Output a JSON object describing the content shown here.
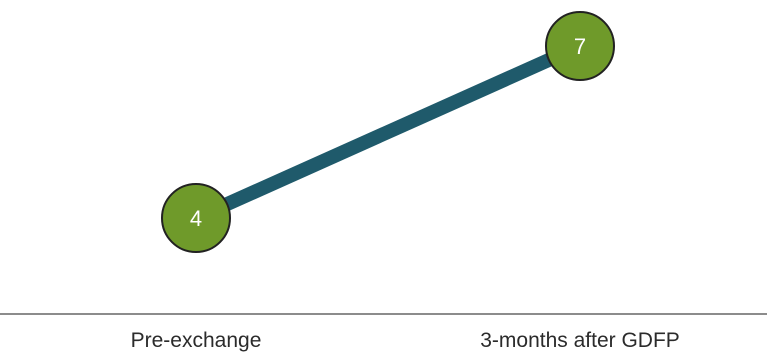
{
  "chart_data": {
    "type": "line",
    "categories": [
      "Pre-exchange",
      "3-months after GDFP"
    ],
    "series": [
      {
        "values": [
          4,
          7
        ],
        "data_labels": [
          "4",
          "7"
        ]
      }
    ],
    "ylim": [
      0,
      8
    ],
    "grid": false,
    "legend": "none",
    "colors": {
      "line": "#1f5a6b",
      "marker_fill": "#6f9a2a",
      "marker_stroke": "#222222",
      "axis": "#8c8c8c",
      "label_text": "#2b2b2b",
      "marker_text": "#ffffff"
    }
  }
}
